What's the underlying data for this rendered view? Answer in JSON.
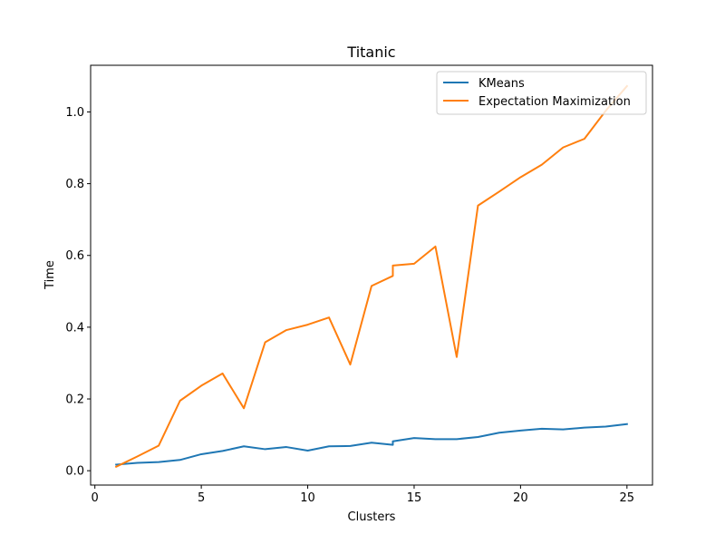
{
  "chart_data": {
    "type": "line",
    "title": "Titanic",
    "xlabel": "Clusters",
    "ylabel": "Time",
    "xlim": [
      -0.2,
      26.2
    ],
    "ylim": [
      -0.04,
      1.13
    ],
    "xticks": [
      0,
      5,
      10,
      15,
      20,
      25
    ],
    "xtick_labels": [
      "0",
      "5",
      "10",
      "15",
      "20",
      "25"
    ],
    "yticks": [
      0.0,
      0.2,
      0.4,
      0.6,
      0.8,
      1.0
    ],
    "ytick_labels": [
      "0.0",
      "0.2",
      "0.4",
      "0.6",
      "0.8",
      "1.0"
    ],
    "grid": false,
    "legend": "top-right",
    "series": [
      {
        "name": "KMeans",
        "color": "#1f77b4",
        "x": [
          1,
          2,
          3,
          4,
          5,
          6,
          7,
          8,
          9,
          10,
          11,
          12,
          13,
          14,
          14,
          15,
          16,
          17,
          18,
          19,
          20,
          21,
          22,
          23,
          24,
          25
        ],
        "y": [
          0.017,
          0.022,
          0.024,
          0.03,
          0.046,
          0.055,
          0.068,
          0.06,
          0.066,
          0.056,
          0.068,
          0.069,
          0.078,
          0.072,
          0.082,
          0.091,
          0.088,
          0.088,
          0.094,
          0.106,
          0.112,
          0.117,
          0.115,
          0.12,
          0.123,
          0.13
        ]
      },
      {
        "name": "Expectation Maximization",
        "color": "#ff7f0e",
        "x": [
          1,
          2,
          3,
          4,
          5,
          6,
          7,
          8,
          9,
          10,
          11,
          12,
          13,
          14,
          14,
          15,
          16,
          17,
          18,
          19,
          20,
          21,
          22,
          23,
          24,
          25
        ],
        "y": [
          0.011,
          0.04,
          0.07,
          0.195,
          0.237,
          0.271,
          0.174,
          0.358,
          0.392,
          0.407,
          0.427,
          0.296,
          0.515,
          0.543,
          0.572,
          0.577,
          0.625,
          0.317,
          0.739,
          0.778,
          0.818,
          0.853,
          0.901,
          0.925,
          1.003,
          1.072
        ]
      }
    ]
  }
}
